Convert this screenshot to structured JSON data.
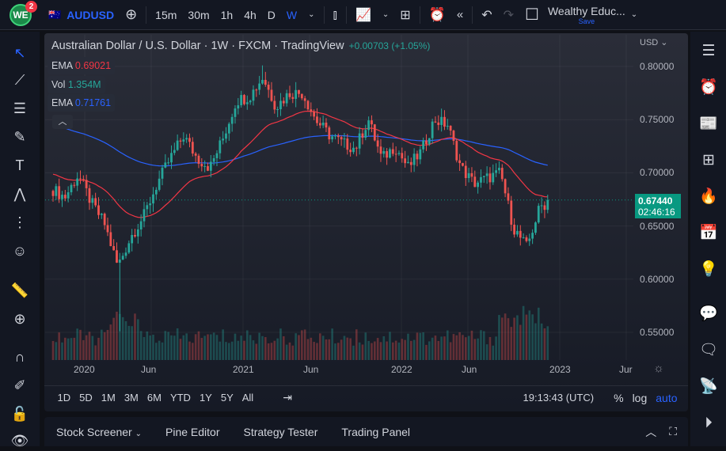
{
  "topbar": {
    "notification_count": "2",
    "logo_text": "WE",
    "symbol": "AUDUSD",
    "intervals": [
      "15m",
      "30m",
      "1h",
      "4h",
      "D",
      "W"
    ],
    "active_interval": "W",
    "layout_name": "Wealthy Educ...",
    "save_label": "Save"
  },
  "legend": {
    "title": "Australian Dollar / U.S. Dollar · 1W · FXCM · TradingView",
    "change": "+0.00703 (+1.05%)",
    "indicators": [
      {
        "name": "EMA",
        "value": "0.69021",
        "color": "#f23645"
      },
      {
        "name": "Vol",
        "value": "1.354M",
        "color": "#26a69a"
      },
      {
        "name": "EMA",
        "value": "0.71761",
        "color": "#2962ff"
      }
    ]
  },
  "price_axis": {
    "currency": "USD",
    "labels": [
      "0.80000",
      "0.75000",
      "0.70000",
      "0.65000",
      "0.60000",
      "0.55000"
    ],
    "last_price": "0.67440",
    "countdown": "02:46:16"
  },
  "time_axis": {
    "labels": [
      "2020",
      "Jun",
      "2021",
      "Jun",
      "2022",
      "Jun",
      "2023",
      "Jur"
    ]
  },
  "range_buttons": [
    "1D",
    "5D",
    "1M",
    "3M",
    "6M",
    "YTD",
    "1Y",
    "5Y",
    "All"
  ],
  "clock": "19:13:43 (UTC)",
  "scale_buttons": {
    "percent": "%",
    "log": "log",
    "auto": "auto"
  },
  "bottom_tabs": [
    "Stock Screener",
    "Pine Editor",
    "Strategy Tester",
    "Trading Panel"
  ],
  "colors": {
    "up": "#26a69a",
    "down": "#ef5350",
    "ema_fast": "#f23645",
    "ema_slow": "#2962ff",
    "accent": "#2962ff"
  },
  "chart_data": {
    "type": "candlestick",
    "symbol": "AUDUSD",
    "timeframe": "1W",
    "ylim": [
      0.53,
      0.81
    ],
    "monthly_close": [
      {
        "date": "2019-10",
        "close": 0.685
      },
      {
        "date": "2019-11",
        "close": 0.677
      },
      {
        "date": "2019-12",
        "close": 0.698
      },
      {
        "date": "2020-01",
        "close": 0.672
      },
      {
        "date": "2020-02",
        "close": 0.652
      },
      {
        "date": "2020-03",
        "close": 0.612
      },
      {
        "date": "2020-04",
        "close": 0.64
      },
      {
        "date": "2020-05",
        "close": 0.66
      },
      {
        "date": "2020-06",
        "close": 0.69
      },
      {
        "date": "2020-07",
        "close": 0.714
      },
      {
        "date": "2020-08",
        "close": 0.735
      },
      {
        "date": "2020-09",
        "close": 0.714
      },
      {
        "date": "2020-10",
        "close": 0.705
      },
      {
        "date": "2020-11",
        "close": 0.733
      },
      {
        "date": "2020-12",
        "close": 0.768
      },
      {
        "date": "2021-01",
        "close": 0.772
      },
      {
        "date": "2021-02",
        "close": 0.79
      },
      {
        "date": "2021-03",
        "close": 0.762
      },
      {
        "date": "2021-04",
        "close": 0.775
      },
      {
        "date": "2021-05",
        "close": 0.775
      },
      {
        "date": "2021-06",
        "close": 0.75
      },
      {
        "date": "2021-07",
        "close": 0.736
      },
      {
        "date": "2021-08",
        "close": 0.728
      },
      {
        "date": "2021-09",
        "close": 0.723
      },
      {
        "date": "2021-10",
        "close": 0.75
      },
      {
        "date": "2021-11",
        "close": 0.713
      },
      {
        "date": "2021-12",
        "close": 0.725
      },
      {
        "date": "2022-01",
        "close": 0.705
      },
      {
        "date": "2022-02",
        "close": 0.72
      },
      {
        "date": "2022-03",
        "close": 0.75
      },
      {
        "date": "2022-04",
        "close": 0.745
      },
      {
        "date": "2022-05",
        "close": 0.705
      },
      {
        "date": "2022-06",
        "close": 0.69
      },
      {
        "date": "2022-07",
        "close": 0.695
      },
      {
        "date": "2022-08",
        "close": 0.7
      },
      {
        "date": "2022-09",
        "close": 0.648
      },
      {
        "date": "2022-10",
        "close": 0.63
      },
      {
        "date": "2022-11",
        "close": 0.668
      },
      {
        "date": "2022-12",
        "close": 0.6744
      }
    ]
  }
}
